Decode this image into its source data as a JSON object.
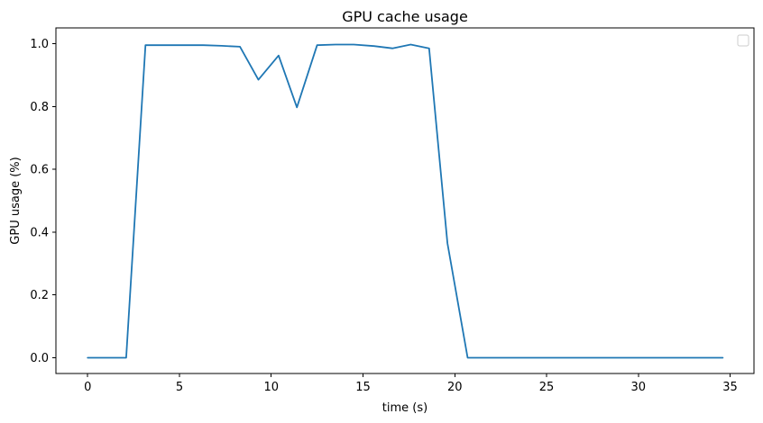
{
  "chart_data": {
    "type": "line",
    "title": "GPU cache usage",
    "xlabel": "time (s)",
    "ylabel": "GPU usage (%)",
    "xlim": [
      -1.73,
      36.3
    ],
    "ylim": [
      -0.05,
      1.05
    ],
    "xticks": [
      0,
      5,
      10,
      15,
      20,
      25,
      30,
      35
    ],
    "yticks": [
      0.0,
      0.2,
      0.4,
      0.6,
      0.8,
      1.0
    ],
    "xtick_labels": [
      "0",
      "5",
      "10",
      "15",
      "20",
      "25",
      "30",
      "35"
    ],
    "ytick_labels": [
      "0.0",
      "0.2",
      "0.4",
      "0.6",
      "0.8",
      "1.0"
    ],
    "grid": false,
    "legend": "top-right",
    "series": [
      {
        "color": "#1f77b4",
        "x": [
          0,
          2.1,
          3.15,
          4.2,
          5.2,
          6.3,
          7.3,
          8.3,
          9.3,
          10.4,
          11.4,
          12.5,
          13.5,
          14.5,
          15.6,
          16.6,
          17.6,
          18.6,
          19.6,
          20.7,
          21.7,
          22.7,
          23.8,
          24.8,
          25.8,
          26.8,
          27.9,
          28.9,
          29.9,
          31.0,
          32.0,
          33.0,
          34.0,
          34.6
        ],
        "y": [
          0.0,
          0.0,
          0.995,
          0.995,
          0.995,
          0.995,
          0.993,
          0.99,
          0.885,
          0.962,
          0.797,
          0.995,
          0.997,
          0.997,
          0.992,
          0.985,
          0.997,
          0.985,
          0.365,
          0.0,
          0.0,
          0.0,
          0.0,
          0.0,
          0.0,
          0.0,
          0.0,
          0.0,
          0.0,
          0.0,
          0.0,
          0.0,
          0.0,
          0.0
        ]
      }
    ]
  }
}
